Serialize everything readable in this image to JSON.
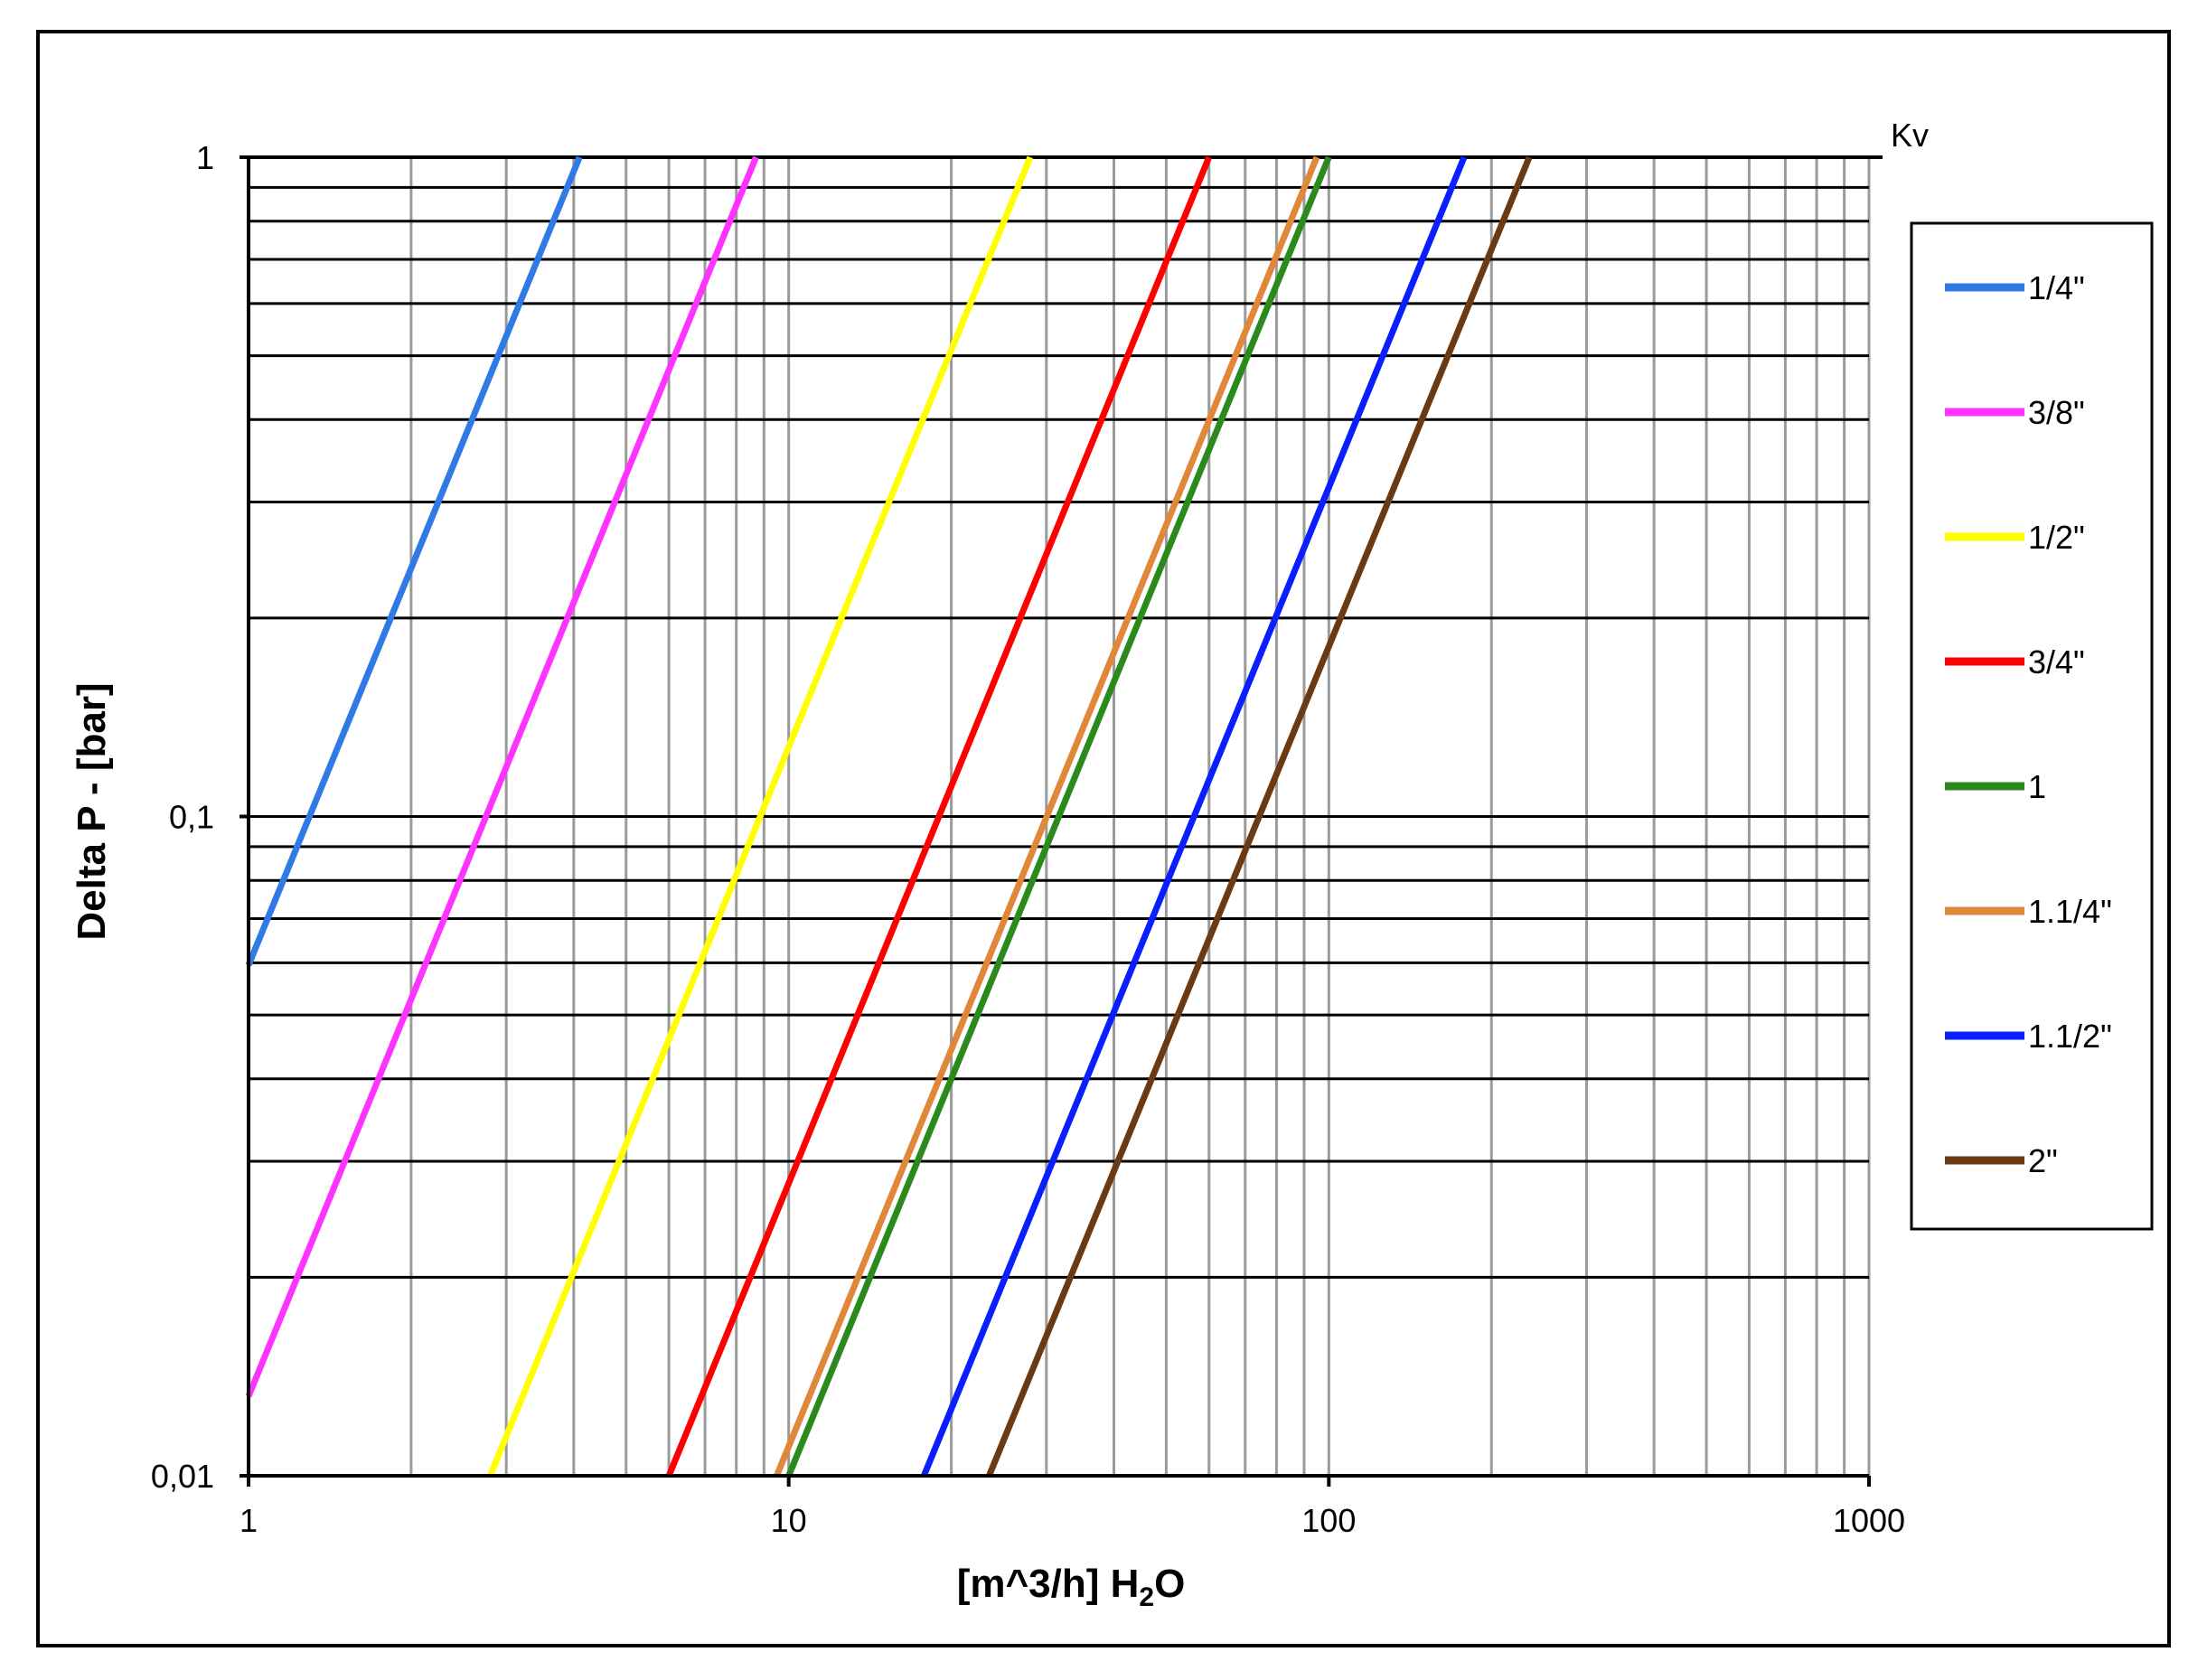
{
  "chart_data": {
    "type": "line",
    "x_scale": "log",
    "y_scale": "log",
    "xlim": [
      1,
      1000
    ],
    "ylim": [
      0.01,
      1
    ],
    "xlabel_main": "[m^3/h] H",
    "xlabel_sub": "2",
    "xlabel_tail": "O",
    "ylabel": "Delta P - [bar]",
    "corner_label": "Kv",
    "x_ticks": [
      {
        "value": 1,
        "label": "1"
      },
      {
        "value": 10,
        "label": "10"
      },
      {
        "value": 100,
        "label": "100"
      },
      {
        "value": 1000,
        "label": "1000"
      }
    ],
    "y_ticks": [
      {
        "value": 1,
        "label": "1"
      },
      {
        "value": 0.1,
        "label": "0,1"
      },
      {
        "value": 0.01,
        "label": "0,01"
      }
    ],
    "grid": true,
    "legend_position": "right",
    "series": [
      {
        "name": "1/4\"",
        "kv": 4.1,
        "color": "#2f7ae5",
        "points": [
          [
            1,
            0.0595
          ],
          [
            4.1,
            1
          ]
        ]
      },
      {
        "name": "3/8\"",
        "kv": 8.7,
        "color": "#ff33ff",
        "points": [
          [
            1,
            0.0132
          ],
          [
            8.7,
            1
          ]
        ]
      },
      {
        "name": "1/2\"",
        "kv": 28,
        "color": "#ffff00",
        "points": [
          [
            2.8,
            0.01
          ],
          [
            28,
            1
          ]
        ]
      },
      {
        "name": "3/4\"",
        "kv": 60,
        "color": "#ff0000",
        "points": [
          [
            6,
            0.01
          ],
          [
            60,
            1
          ]
        ]
      },
      {
        "name": "1",
        "kv": 100,
        "color": "#2a8a1c",
        "points": [
          [
            10,
            0.01
          ],
          [
            100,
            1
          ]
        ]
      },
      {
        "name": "1.1/4\"",
        "kv": 95,
        "color": "#e0873a",
        "points": [
          [
            9.5,
            0.01
          ],
          [
            95,
            1
          ]
        ]
      },
      {
        "name": "1.1/2\"",
        "kv": 178,
        "color": "#0a1fff",
        "points": [
          [
            17.8,
            0.01
          ],
          [
            178,
            1
          ]
        ]
      },
      {
        "name": "2\"",
        "kv": 235,
        "color": "#6b3a12",
        "points": [
          [
            23.5,
            0.01
          ],
          [
            235,
            1
          ]
        ]
      }
    ]
  }
}
